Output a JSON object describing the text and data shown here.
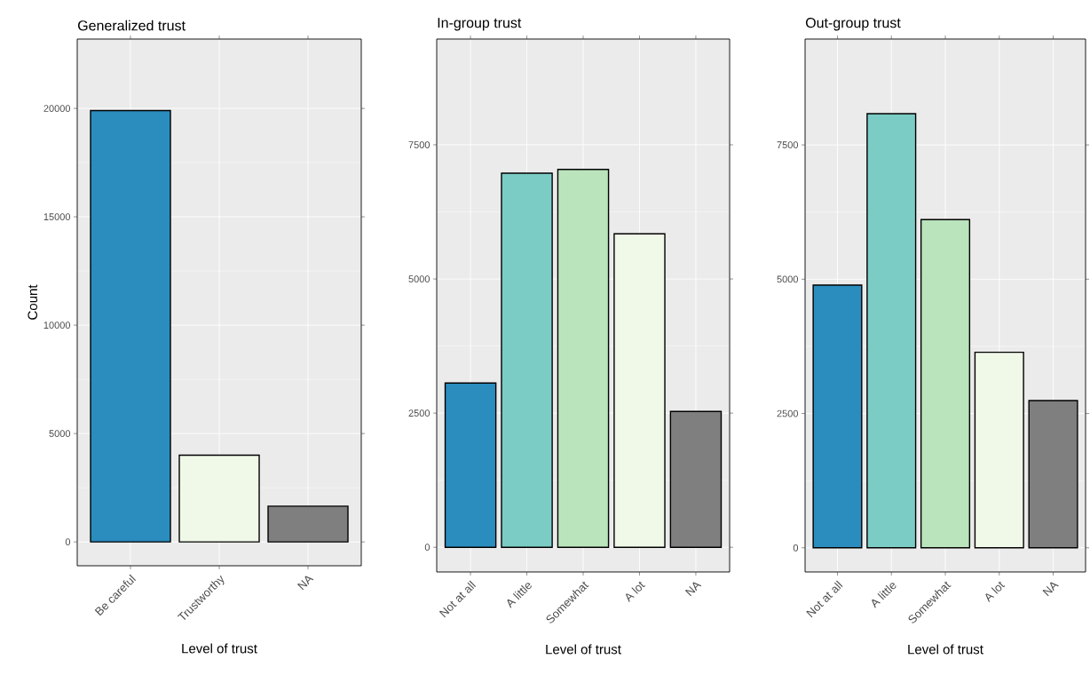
{
  "chart_data": [
    {
      "type": "bar",
      "title": "Generalized trust",
      "xlabel": "Level of trust",
      "ylabel": "Count",
      "categories": [
        "Be careful",
        "Trustworthy",
        "NA"
      ],
      "values": [
        19900,
        4000,
        1650
      ],
      "colors": [
        "#2b8cbe",
        "#f0f9e8",
        "#7f7f7f"
      ],
      "ylim": [
        -1100,
        23200
      ],
      "yticks": [
        0,
        5000,
        10000,
        15000,
        20000
      ],
      "grid": true
    },
    {
      "type": "bar",
      "title": "In-group trust",
      "xlabel": "Level of trust",
      "categories": [
        "Not at all",
        "A little",
        "Somewhat",
        "A lot",
        "NA"
      ],
      "values": [
        3060,
        6970,
        7040,
        5840,
        2530
      ],
      "colors": [
        "#2b8cbe",
        "#7bccc4",
        "#bae4bc",
        "#f0f9e8",
        "#7f7f7f"
      ],
      "ylim": [
        -460,
        9470
      ],
      "yticks": [
        0,
        2500,
        5000,
        7500
      ],
      "grid": true
    },
    {
      "type": "bar",
      "title": "Out-group trust",
      "xlabel": "Level of trust",
      "categories": [
        "Not at all",
        "A little",
        "Somewhat",
        "A lot",
        "NA"
      ],
      "values": [
        4890,
        8080,
        6110,
        3640,
        2740
      ],
      "colors": [
        "#2b8cbe",
        "#7bccc4",
        "#bae4bc",
        "#f0f9e8",
        "#7f7f7f"
      ],
      "ylim": [
        -450,
        9470
      ],
      "yticks": [
        0,
        2500,
        5000,
        7500
      ],
      "grid": true
    }
  ]
}
